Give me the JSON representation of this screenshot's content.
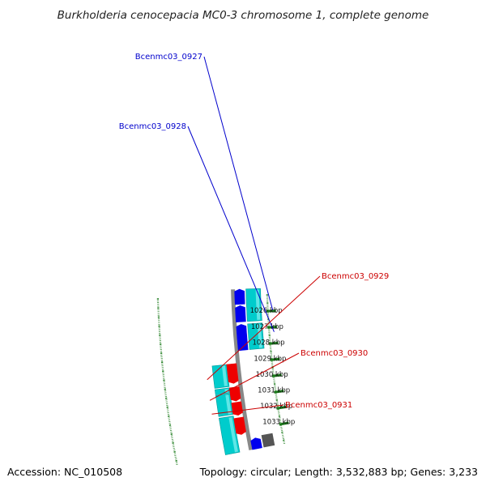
{
  "title": "Burkholderia cenocepacia MC0-3 chromosome 1, complete genome",
  "footer": {
    "accession": "Accession: NC_010508",
    "summary": "Topology: circular; Length: 3,532,883 bp; Genes: 3,233"
  },
  "scale_ticks": [
    {
      "label": "1026 kbp",
      "kbp": 1026.0
    },
    {
      "label": "1027 kbp",
      "kbp": 1027.0
    },
    {
      "label": "1028 kbp",
      "kbp": 1028.0
    },
    {
      "label": "1029 kbp",
      "kbp": 1029.0
    },
    {
      "label": "1030 kbp",
      "kbp": 1030.0
    },
    {
      "label": "1031 kbp",
      "kbp": 1031.0
    },
    {
      "label": "1032 kbp",
      "kbp": 1032.0
    },
    {
      "label": "1033 kbp",
      "kbp": 1033.0
    }
  ],
  "gene_labels": [
    {
      "text": "Bcenmc03_0927",
      "color": "#0000cc"
    },
    {
      "text": "Bcenmc03_0928",
      "color": "#0000cc"
    },
    {
      "text": "Bcenmc03_0929",
      "color": "#cc0000"
    },
    {
      "text": "Bcenmc03_0930",
      "color": "#cc0000"
    },
    {
      "text": "Bcenmc03_0931",
      "color": "#cc0000"
    }
  ],
  "colors": {
    "forward_gene": "#0000ee",
    "reverse_gene": "#ee0000",
    "cds_track": "#00cccc",
    "backbone": "#888888",
    "tick": "#1a7a1a"
  }
}
